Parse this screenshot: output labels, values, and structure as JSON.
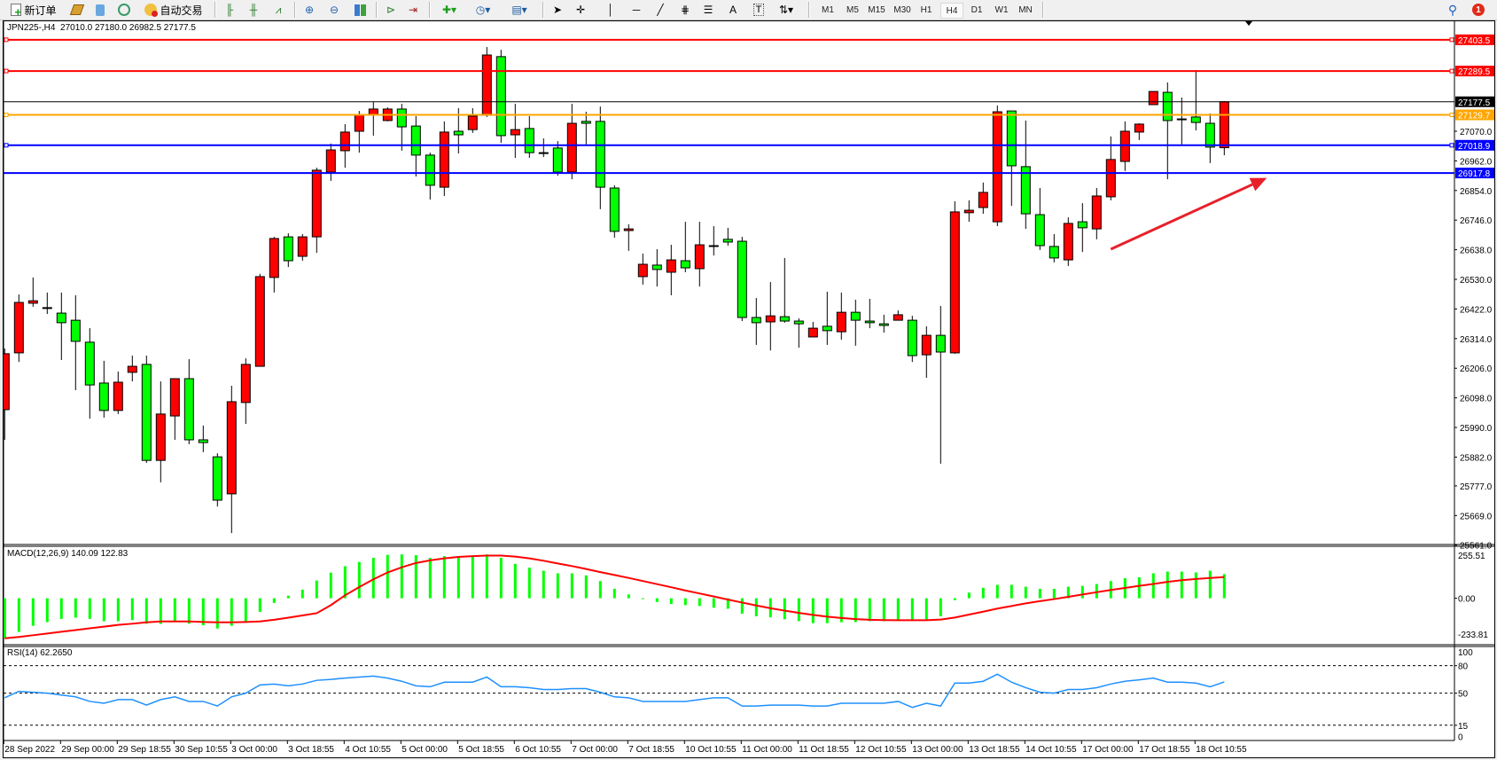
{
  "toolbar": {
    "new_order_label": "新订单",
    "auto_trading_label": "自动交易",
    "icons": [
      "new-order-icon",
      "gold-bars-icon",
      "market-watch-icon",
      "signals-icon",
      "auto-trading-icon",
      "bar-chart-icon",
      "candlestick-icon",
      "line-chart-icon",
      "zoom-in-icon",
      "zoom-out-icon",
      "tile-windows-icon",
      "auto-scroll-icon",
      "chart-shift-icon",
      "indicators-icon",
      "periods-icon",
      "templates-icon",
      "cursor-icon",
      "crosshair-icon",
      "vertical-line-icon",
      "horizontal-line-icon",
      "trendline-icon",
      "fibonacci-icon",
      "fibonacci-fan-icon",
      "text-icon",
      "text-label-icon",
      "arrows-icon",
      "search-icon",
      "notifications-icon"
    ],
    "text_tool_label": "A",
    "label_tool_label": "T",
    "notification_count": "1",
    "timeframes": [
      "M1",
      "M5",
      "M15",
      "M30",
      "H1",
      "H4",
      "D1",
      "W1",
      "MN"
    ],
    "active_timeframe": "H4"
  },
  "chart": {
    "title": "JPN225-,H4  27010.0 27180.0 26982.5 27177.5",
    "colors": {
      "bull": "#ff0000",
      "bear": "#00ff00",
      "wick": "#000000",
      "arrow": "#e8202a"
    },
    "price_ticks": [
      "27070.0",
      "26962.0",
      "26854.0",
      "26746.0",
      "26638.0",
      "26530.0",
      "26422.0",
      "26314.0",
      "26206.0",
      "26098.0",
      "25990.0",
      "25882.0",
      "25777.0",
      "25669.0",
      "25561.0"
    ],
    "hlines": [
      {
        "price": 27403.5,
        "label": "27403.5",
        "color": "#ff0000",
        "marker": true
      },
      {
        "price": 27289.5,
        "label": "27289.5",
        "color": "#ff0000",
        "marker": true
      },
      {
        "price": 27177.5,
        "label": "27177.5",
        "color": "#000000",
        "marker": false
      },
      {
        "price": 27129.7,
        "label": "27129.7",
        "color": "#ffa500",
        "marker": true
      },
      {
        "price": 27018.9,
        "label": "27018.9",
        "color": "#0000ff",
        "marker": true
      },
      {
        "price": 26917.8,
        "label": "26917.8",
        "color": "#0000ff",
        "marker": false
      }
    ],
    "time_labels": [
      "28 Sep 2022",
      "29 Sep 00:00",
      "29 Sep 18:55",
      "30 Sep 10:55",
      "3 Oct 00:00",
      "3 Oct 18:55",
      "4 Oct 10:55",
      "5 Oct 00:00",
      "5 Oct 18:55",
      "6 Oct 10:55",
      "7 Oct 00:00",
      "7 Oct 18:55",
      "10 Oct 10:55",
      "11 Oct 00:00",
      "11 Oct 18:55",
      "12 Oct 10:55",
      "13 Oct 00:00",
      "13 Oct 18:55",
      "14 Oct 10:55",
      "17 Oct 00:00",
      "17 Oct 18:55",
      "18 Oct 10:55"
    ]
  },
  "chart_data": {
    "type": "candlestick",
    "symbol": "JPN225-",
    "timeframe": "H4",
    "ylim": [
      25561,
      27403.5
    ],
    "ohlc_fields": [
      "open",
      "high",
      "low",
      "close"
    ],
    "candles": [
      [
        26055,
        26278,
        25945,
        26259
      ],
      [
        26262,
        26475,
        26229,
        26446
      ],
      [
        26443,
        26537,
        26430,
        26452
      ],
      [
        26427,
        26482,
        26404,
        26427
      ],
      [
        26407,
        26482,
        26236,
        26372
      ],
      [
        26381,
        26472,
        26126,
        26304
      ],
      [
        26301,
        26352,
        26022,
        26145
      ],
      [
        26152,
        26233,
        26026,
        26052
      ],
      [
        26052,
        26194,
        26039,
        26155
      ],
      [
        26191,
        26252,
        26158,
        26213
      ],
      [
        26220,
        26252,
        25861,
        25870
      ],
      [
        25870,
        26158,
        25790,
        26039
      ],
      [
        26032,
        26168,
        25945,
        26168
      ],
      [
        26168,
        26239,
        25929,
        25945
      ],
      [
        25945,
        25997,
        25900,
        25935
      ],
      [
        25883,
        25896,
        25702,
        25725
      ],
      [
        25748,
        26142,
        25605,
        26084
      ],
      [
        26081,
        26242,
        26003,
        26220
      ],
      [
        26213,
        26550,
        26213,
        26540
      ],
      [
        26537,
        26685,
        26482,
        26679
      ],
      [
        26685,
        26698,
        26575,
        26598
      ],
      [
        26614,
        26695,
        26598,
        26685
      ],
      [
        26685,
        26937,
        26627,
        26928
      ],
      [
        26921,
        27025,
        26889,
        27002
      ],
      [
        26999,
        27096,
        26937,
        27067
      ],
      [
        27070,
        27144,
        26992,
        27128
      ],
      [
        27131,
        27177,
        27054,
        27151
      ],
      [
        27109,
        27157,
        27106,
        27151
      ],
      [
        27151,
        27170,
        26999,
        27086
      ],
      [
        27089,
        27125,
        26905,
        26983
      ],
      [
        26983,
        26992,
        26821,
        26873
      ],
      [
        26866,
        27106,
        26834,
        27067
      ],
      [
        27070,
        27154,
        26989,
        27057
      ],
      [
        27076,
        27154,
        27064,
        27125
      ],
      [
        27128,
        27377,
        27122,
        27348
      ],
      [
        27342,
        27367,
        27028,
        27054
      ],
      [
        27057,
        27170,
        26973,
        27076
      ],
      [
        27080,
        27125,
        26973,
        26992
      ],
      [
        26992,
        27044,
        26976,
        26992
      ],
      [
        27009,
        27034,
        26908,
        26921
      ],
      [
        26921,
        27170,
        26895,
        27099
      ],
      [
        27106,
        27141,
        27022,
        27099
      ],
      [
        27106,
        27160,
        26786,
        26866
      ],
      [
        26863,
        26873,
        26682,
        26705
      ],
      [
        26708,
        26731,
        26634,
        26714
      ],
      [
        26540,
        26624,
        26511,
        26585
      ],
      [
        26582,
        26640,
        26504,
        26566
      ],
      [
        26556,
        26656,
        26472,
        26601
      ],
      [
        26598,
        26740,
        26556,
        26572
      ],
      [
        26569,
        26740,
        26504,
        26656
      ],
      [
        26653,
        26724,
        26617,
        26653
      ],
      [
        26676,
        26718,
        26653,
        26666
      ],
      [
        26669,
        26685,
        26378,
        26391
      ],
      [
        26391,
        26462,
        26291,
        26372
      ],
      [
        26375,
        26520,
        26271,
        26397
      ],
      [
        26394,
        26608,
        26372,
        26378
      ],
      [
        26378,
        26388,
        26281,
        26368
      ],
      [
        26320,
        26375,
        26320,
        26352
      ],
      [
        26359,
        26485,
        26291,
        26343
      ],
      [
        26339,
        26482,
        26310,
        26410
      ],
      [
        26410,
        26456,
        26288,
        26381
      ],
      [
        26378,
        26459,
        26352,
        26372
      ],
      [
        26368,
        26401,
        26336,
        26362
      ],
      [
        26381,
        26417,
        26381,
        26401
      ],
      [
        26381,
        26397,
        26229,
        26252
      ],
      [
        26255,
        26359,
        26171,
        26326
      ],
      [
        26326,
        26433,
        25858,
        26265
      ],
      [
        26262,
        26815,
        26259,
        26776
      ],
      [
        26773,
        26818,
        26740,
        26782
      ],
      [
        26792,
        26883,
        26769,
        26847
      ],
      [
        26740,
        27164,
        26724,
        27141
      ],
      [
        27144,
        27144,
        26798,
        26944
      ],
      [
        26941,
        27109,
        26714,
        26769
      ],
      [
        26766,
        26863,
        26637,
        26653
      ],
      [
        26650,
        26695,
        26592,
        26608
      ],
      [
        26601,
        26756,
        26579,
        26734
      ],
      [
        26740,
        26808,
        26630,
        26718
      ],
      [
        26714,
        26863,
        26676,
        26834
      ],
      [
        26831,
        27051,
        26818,
        26967
      ],
      [
        26960,
        27106,
        26925,
        27070
      ],
      [
        27067,
        27099,
        27038,
        27096
      ],
      [
        27167,
        27215,
        27167,
        27215
      ],
      [
        27212,
        27248,
        26895,
        27109
      ],
      [
        27115,
        27193,
        27022,
        27115
      ],
      [
        27122,
        27293,
        27073,
        27102
      ],
      [
        27099,
        27135,
        26954,
        27012
      ],
      [
        27010,
        27180,
        26982.5,
        27177.5
      ]
    ],
    "annotation_arrow": {
      "from": {
        "bar": 78,
        "price": 26640
      },
      "to": {
        "bar": 89,
        "price": 26900
      }
    },
    "macd": {
      "label": "MACD(12,26,9) 140.09 122.83",
      "ylim": [
        -233.81,
        255.51
      ],
      "axis_labels": [
        "255.51",
        "0.00",
        "-233.81"
      ],
      "histogram_color": "#00ff00",
      "signal_color": "#ff0000",
      "histogram": [
        -233,
        -196,
        -160,
        -139,
        -120,
        -113,
        -120,
        -134,
        -134,
        -127,
        -148,
        -149,
        -136,
        -148,
        -157,
        -176,
        -160,
        -134,
        -79,
        -27,
        15,
        50,
        103,
        149,
        186,
        211,
        235,
        252,
        255,
        250,
        235,
        245,
        245,
        245,
        255,
        235,
        200,
        178,
        160,
        145,
        145,
        133,
        100,
        55,
        22,
        -5,
        -22,
        -33,
        -40,
        -45,
        -55,
        -61,
        -90,
        -105,
        -111,
        -122,
        -133,
        -145,
        -145,
        -139,
        -139,
        -133,
        -133,
        -128,
        -133,
        -128,
        -105,
        -11,
        33,
        61,
        78,
        78,
        67,
        55,
        55,
        67,
        72,
        83,
        100,
        117,
        122,
        145,
        155,
        155,
        150,
        160,
        140.09
      ],
      "signal": [
        -233,
        -225,
        -215,
        -205,
        -195,
        -185,
        -175,
        -165,
        -155,
        -148,
        -140,
        -135,
        -135,
        -135,
        -138,
        -140,
        -140,
        -138,
        -135,
        -125,
        -113,
        -100,
        -87,
        -40,
        17,
        65,
        110,
        150,
        180,
        205,
        220,
        232,
        240,
        245,
        248,
        248,
        242,
        232,
        218,
        202,
        187,
        170,
        152,
        135,
        118,
        100,
        82,
        64,
        45,
        28,
        10,
        -8,
        -25,
        -42,
        -58,
        -72,
        -85,
        -97,
        -107,
        -115,
        -121,
        -125,
        -127,
        -128,
        -128,
        -128,
        -124,
        -112,
        -95,
        -78,
        -60,
        -45,
        -30,
        -17,
        -5,
        8,
        22,
        35,
        48,
        60,
        72,
        83,
        95,
        105,
        112,
        118,
        122.83
      ]
    },
    "rsi": {
      "label": "RSI(14) 62.2650",
      "ylim": [
        0,
        100
      ],
      "levels": [
        80,
        50,
        15
      ],
      "axis_labels": [
        "100",
        "80",
        "50",
        "15",
        "0"
      ],
      "color": "#1e90ff",
      "values": [
        45,
        52,
        51,
        50,
        48,
        46,
        41,
        39,
        43,
        43,
        37,
        43,
        46,
        41,
        41,
        36,
        46,
        50,
        59,
        60,
        58,
        60,
        64,
        65,
        66.5,
        67.6,
        68.6,
        66.5,
        63,
        58,
        57,
        62,
        62,
        62,
        67.6,
        57,
        57,
        56,
        54,
        54,
        55,
        55,
        51,
        46,
        45,
        41,
        41,
        41,
        41,
        43,
        45,
        45,
        36,
        36,
        37,
        37,
        37,
        36,
        36,
        39,
        39,
        39,
        39,
        41,
        34.5,
        39,
        36,
        61,
        61,
        63,
        70.7,
        62,
        56,
        51,
        50,
        54,
        54,
        56,
        60,
        63,
        64.5,
        66.5,
        62,
        62,
        61,
        57,
        62.27
      ]
    }
  }
}
